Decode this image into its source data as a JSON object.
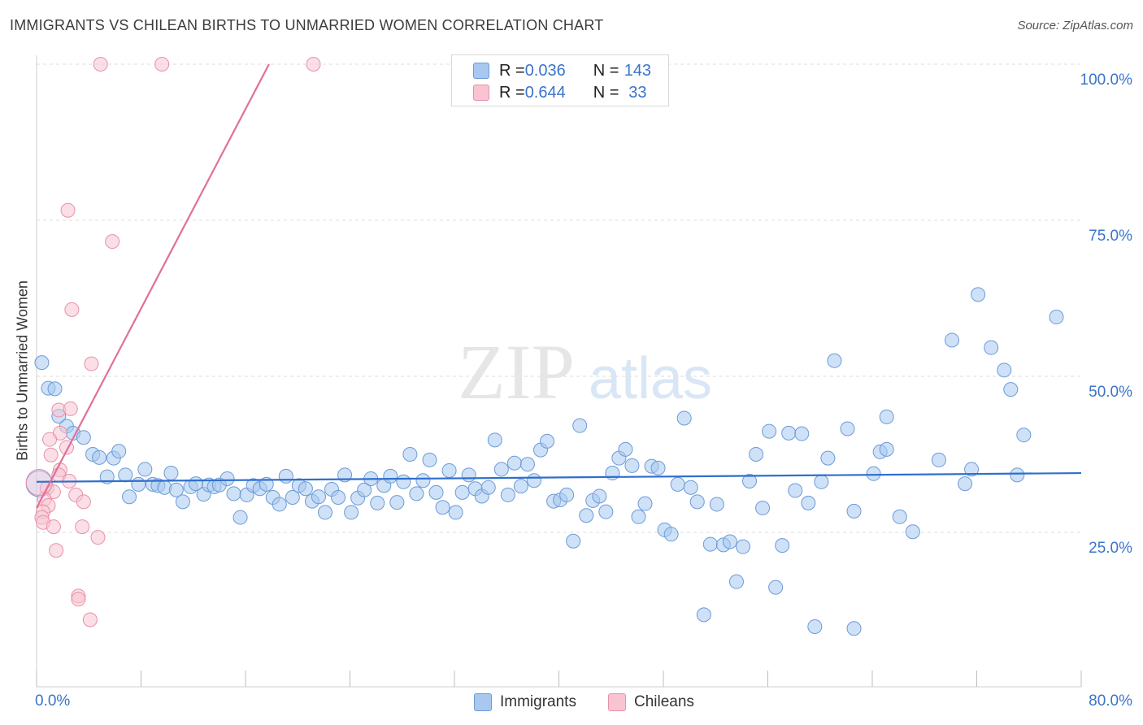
{
  "title": "IMMIGRANTS VS CHILEAN BIRTHS TO UNMARRIED WOMEN CORRELATION CHART",
  "source": "Source: ZipAtlas.com",
  "watermark": {
    "zip": "ZIP",
    "atlas": "atlas"
  },
  "legend": {
    "rows": [
      {
        "r_label": "R = ",
        "r_value": "0.036",
        "n_label": "N = ",
        "n_value": "143",
        "color": "#a8c8f0",
        "border": "#6b9bd8"
      },
      {
        "r_label": "R = ",
        "r_value": "0.644",
        "n_label": "N = ",
        "n_value": "33",
        "color": "#f8c4d2",
        "border": "#e890aa"
      }
    ]
  },
  "bottom_legend": [
    {
      "label": "Immigrants",
      "color": "#a8c8f0",
      "border": "#6b9bd8"
    },
    {
      "label": "Chileans",
      "color": "#f8c4d2",
      "border": "#e890aa"
    }
  ],
  "chart_data": {
    "type": "scatter",
    "title": "IMMIGRANTS VS CHILEAN BIRTHS TO UNMARRIED WOMEN CORRELATION CHART",
    "xlabel": "",
    "ylabel": "Births to Unmarried Women",
    "xlim": [
      0,
      80
    ],
    "ylim": [
      0,
      100
    ],
    "x_tick_labels": [
      "0.0%",
      "80.0%"
    ],
    "y_ticks": [
      25,
      50,
      75,
      100
    ],
    "y_tick_labels": [
      "25.0%",
      "50.0%",
      "75.0%",
      "100.0%"
    ],
    "grid": "horizontal dashed",
    "legend_position": "top-center",
    "series": [
      {
        "name": "Immigrants",
        "color": "#6b9bd8",
        "fill": "#a8c8f0",
        "trendline": {
          "x": [
            0,
            80
          ],
          "y": [
            33.1,
            34.5
          ],
          "color": "#2f6fcc"
        },
        "points": [
          [
            0.4,
            52.2
          ],
          [
            0.9,
            48.1
          ],
          [
            1.4,
            48.0
          ],
          [
            1.7,
            43.6
          ],
          [
            2.3,
            42.0
          ],
          [
            2.8,
            40.9
          ],
          [
            3.6,
            40.2
          ],
          [
            4.3,
            37.5
          ],
          [
            4.8,
            37.0
          ],
          [
            5.4,
            33.9
          ],
          [
            5.9,
            36.9
          ],
          [
            6.3,
            38.0
          ],
          [
            6.8,
            34.2
          ],
          [
            7.1,
            30.7
          ],
          [
            7.8,
            32.7
          ],
          [
            8.3,
            35.1
          ],
          [
            8.9,
            32.7
          ],
          [
            9.3,
            32.5
          ],
          [
            9.8,
            32.2
          ],
          [
            10.3,
            34.5
          ],
          [
            10.7,
            31.8
          ],
          [
            11.2,
            29.9
          ],
          [
            11.8,
            32.3
          ],
          [
            12.2,
            32.8
          ],
          [
            12.8,
            31.1
          ],
          [
            13.2,
            32.6
          ],
          [
            13.6,
            32.3
          ],
          [
            14.0,
            32.6
          ],
          [
            14.6,
            33.6
          ],
          [
            15.1,
            31.2
          ],
          [
            15.6,
            27.4
          ],
          [
            16.1,
            31.0
          ],
          [
            16.6,
            32.5
          ],
          [
            17.1,
            32.0
          ],
          [
            17.6,
            32.7
          ],
          [
            18.1,
            30.6
          ],
          [
            18.6,
            29.5
          ],
          [
            19.1,
            34.0
          ],
          [
            19.6,
            30.6
          ],
          [
            20.1,
            32.5
          ],
          [
            20.6,
            32.0
          ],
          [
            21.1,
            30.0
          ],
          [
            21.6,
            30.7
          ],
          [
            22.1,
            28.2
          ],
          [
            22.6,
            31.9
          ],
          [
            23.1,
            30.6
          ],
          [
            23.6,
            34.2
          ],
          [
            24.1,
            28.2
          ],
          [
            24.6,
            30.5
          ],
          [
            25.1,
            31.8
          ],
          [
            25.6,
            33.6
          ],
          [
            26.1,
            29.7
          ],
          [
            26.6,
            32.5
          ],
          [
            27.1,
            34.0
          ],
          [
            27.6,
            29.8
          ],
          [
            28.1,
            33.1
          ],
          [
            28.6,
            37.5
          ],
          [
            29.1,
            31.2
          ],
          [
            29.6,
            33.3
          ],
          [
            30.1,
            36.6
          ],
          [
            30.6,
            31.4
          ],
          [
            31.1,
            29.0
          ],
          [
            31.6,
            34.9
          ],
          [
            32.1,
            28.2
          ],
          [
            32.6,
            31.4
          ],
          [
            33.1,
            34.2
          ],
          [
            33.6,
            32.0
          ],
          [
            34.1,
            30.8
          ],
          [
            34.6,
            32.2
          ],
          [
            35.1,
            39.8
          ],
          [
            35.6,
            35.1
          ],
          [
            36.1,
            31.0
          ],
          [
            36.6,
            36.1
          ],
          [
            37.1,
            32.4
          ],
          [
            37.6,
            35.9
          ],
          [
            38.1,
            33.3
          ],
          [
            38.6,
            38.2
          ],
          [
            39.1,
            39.6
          ],
          [
            39.6,
            30.0
          ],
          [
            40.1,
            30.2
          ],
          [
            40.6,
            31.0
          ],
          [
            41.1,
            23.6
          ],
          [
            41.6,
            42.1
          ],
          [
            42.1,
            27.7
          ],
          [
            42.6,
            30.1
          ],
          [
            43.1,
            30.8
          ],
          [
            43.6,
            28.3
          ],
          [
            44.1,
            34.5
          ],
          [
            44.6,
            36.9
          ],
          [
            45.1,
            38.3
          ],
          [
            45.6,
            35.7
          ],
          [
            46.1,
            27.5
          ],
          [
            46.6,
            29.6
          ],
          [
            47.1,
            35.6
          ],
          [
            47.6,
            35.3
          ],
          [
            48.1,
            25.4
          ],
          [
            48.6,
            24.7
          ],
          [
            49.1,
            32.7
          ],
          [
            49.6,
            43.3
          ],
          [
            50.1,
            32.2
          ],
          [
            50.6,
            29.9
          ],
          [
            51.1,
            11.8
          ],
          [
            51.6,
            23.1
          ],
          [
            52.1,
            29.5
          ],
          [
            52.6,
            23.0
          ],
          [
            53.1,
            23.5
          ],
          [
            53.6,
            17.1
          ],
          [
            54.1,
            22.7
          ],
          [
            54.6,
            33.2
          ],
          [
            55.1,
            37.5
          ],
          [
            55.6,
            28.9
          ],
          [
            56.1,
            41.2
          ],
          [
            56.6,
            16.2
          ],
          [
            57.1,
            22.9
          ],
          [
            57.6,
            40.9
          ],
          [
            58.1,
            31.7
          ],
          [
            58.6,
            40.8
          ],
          [
            59.1,
            29.7
          ],
          [
            59.6,
            9.9
          ],
          [
            60.1,
            33.1
          ],
          [
            60.6,
            36.9
          ],
          [
            61.1,
            52.5
          ],
          [
            62.1,
            41.6
          ],
          [
            62.6,
            9.6
          ],
          [
            62.6,
            28.4
          ],
          [
            64.1,
            34.4
          ],
          [
            64.6,
            37.9
          ],
          [
            65.1,
            43.5
          ],
          [
            65.1,
            38.3
          ],
          [
            66.1,
            27.5
          ],
          [
            67.1,
            25.1
          ],
          [
            69.1,
            36.6
          ],
          [
            70.1,
            55.8
          ],
          [
            71.1,
            32.8
          ],
          [
            71.6,
            35.1
          ],
          [
            72.1,
            63.1
          ],
          [
            73.1,
            54.6
          ],
          [
            74.1,
            51.0
          ],
          [
            74.6,
            47.9
          ],
          [
            75.1,
            34.2
          ],
          [
            75.6,
            40.6
          ],
          [
            78.1,
            59.5
          ],
          [
            0.2,
            32.8
          ]
        ]
      },
      {
        "name": "Chileans",
        "color": "#e890aa",
        "fill": "#f8c4d2",
        "trendline": {
          "x": [
            0,
            17.8
          ],
          "y": [
            28.9,
            100
          ],
          "color": "#e07098"
        },
        "points": [
          [
            4.9,
            100
          ],
          [
            9.6,
            100
          ],
          [
            21.2,
            100
          ],
          [
            2.4,
            76.6
          ],
          [
            5.8,
            71.6
          ],
          [
            2.7,
            60.7
          ],
          [
            4.2,
            52.0
          ],
          [
            1.7,
            44.6
          ],
          [
            2.6,
            44.8
          ],
          [
            1.8,
            40.9
          ],
          [
            1.0,
            39.9
          ],
          [
            2.3,
            38.6
          ],
          [
            1.1,
            37.4
          ],
          [
            1.8,
            35.0
          ],
          [
            1.7,
            34.2
          ],
          [
            2.5,
            33.2
          ],
          [
            0.8,
            32.1
          ],
          [
            1.3,
            31.5
          ],
          [
            3.0,
            31.0
          ],
          [
            0.6,
            30.3
          ],
          [
            3.6,
            29.9
          ],
          [
            0.9,
            29.3
          ],
          [
            0.5,
            28.3
          ],
          [
            0.4,
            27.4
          ],
          [
            0.5,
            26.6
          ],
          [
            1.3,
            25.9
          ],
          [
            3.5,
            25.9
          ],
          [
            4.7,
            24.2
          ],
          [
            1.5,
            22.1
          ],
          [
            3.2,
            14.8
          ],
          [
            3.2,
            14.3
          ],
          [
            4.1,
            11.0
          ],
          [
            0.2,
            33.0
          ]
        ]
      }
    ]
  }
}
